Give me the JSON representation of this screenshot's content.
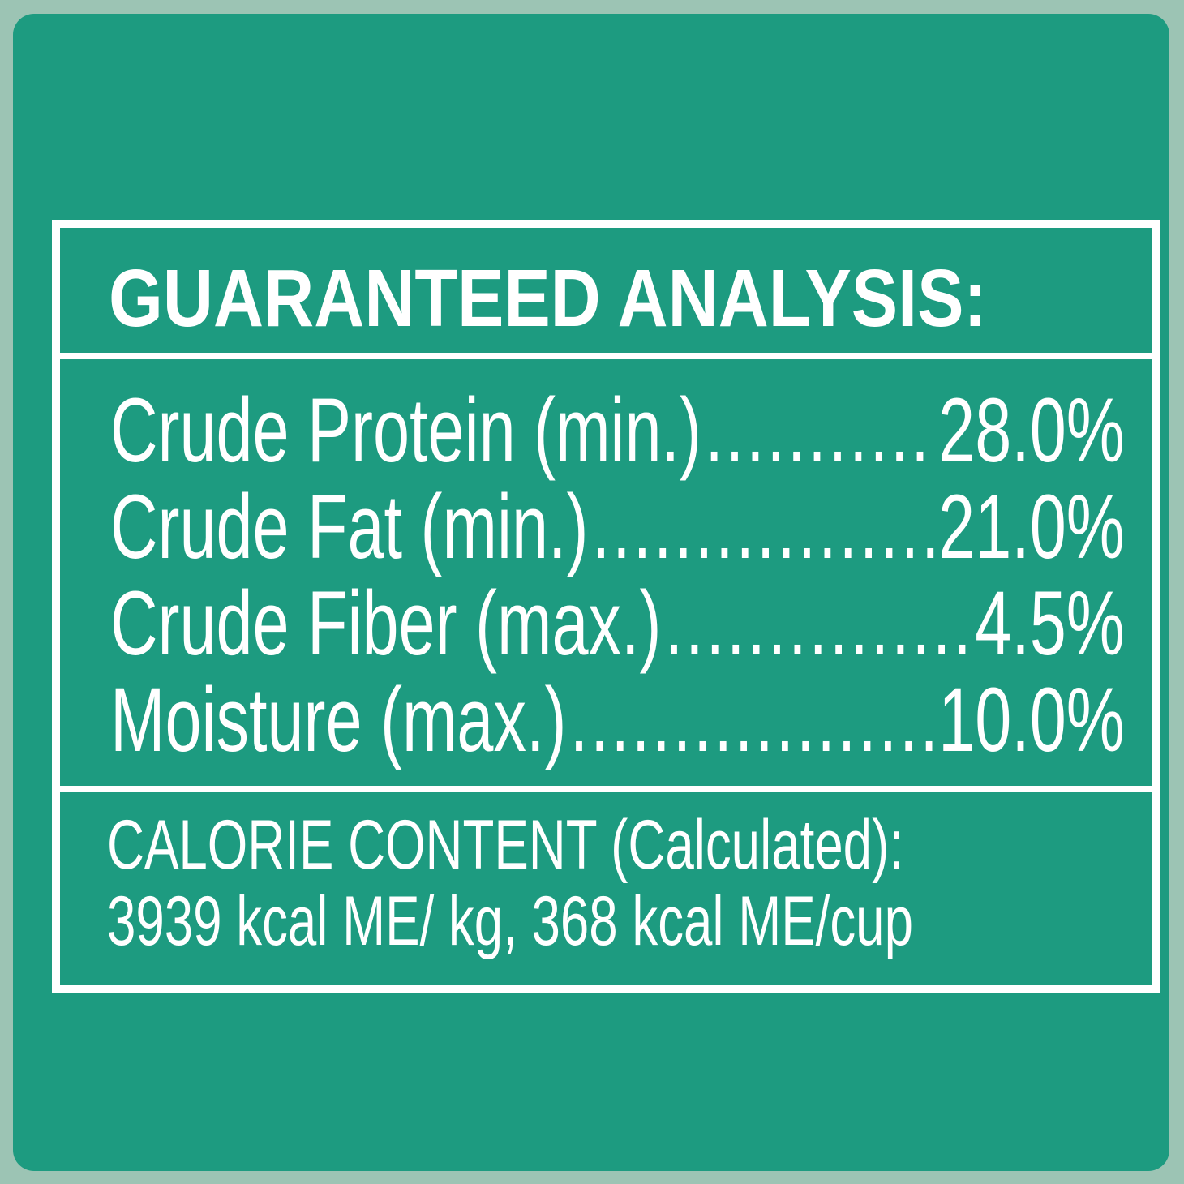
{
  "title": "GUARANTEED ANALYSIS:",
  "rows": [
    {
      "label": "Crude Protein (min.)",
      "value": "28.0%"
    },
    {
      "label": "Crude Fat (min.)",
      "value": "21.0%"
    },
    {
      "label": "Crude Fiber (max.)",
      "value": "4.5%"
    },
    {
      "label": "Moisture (max.)",
      "value": "10.0%"
    }
  ],
  "calorie": {
    "heading": "CALORIE CONTENT (Calculated):",
    "values": "3939 kcal ME/ kg, 368 kcal ME/cup"
  },
  "colors": {
    "background": "#9cc4b4",
    "panel": "#1d9b80",
    "text": "#ffffff"
  }
}
